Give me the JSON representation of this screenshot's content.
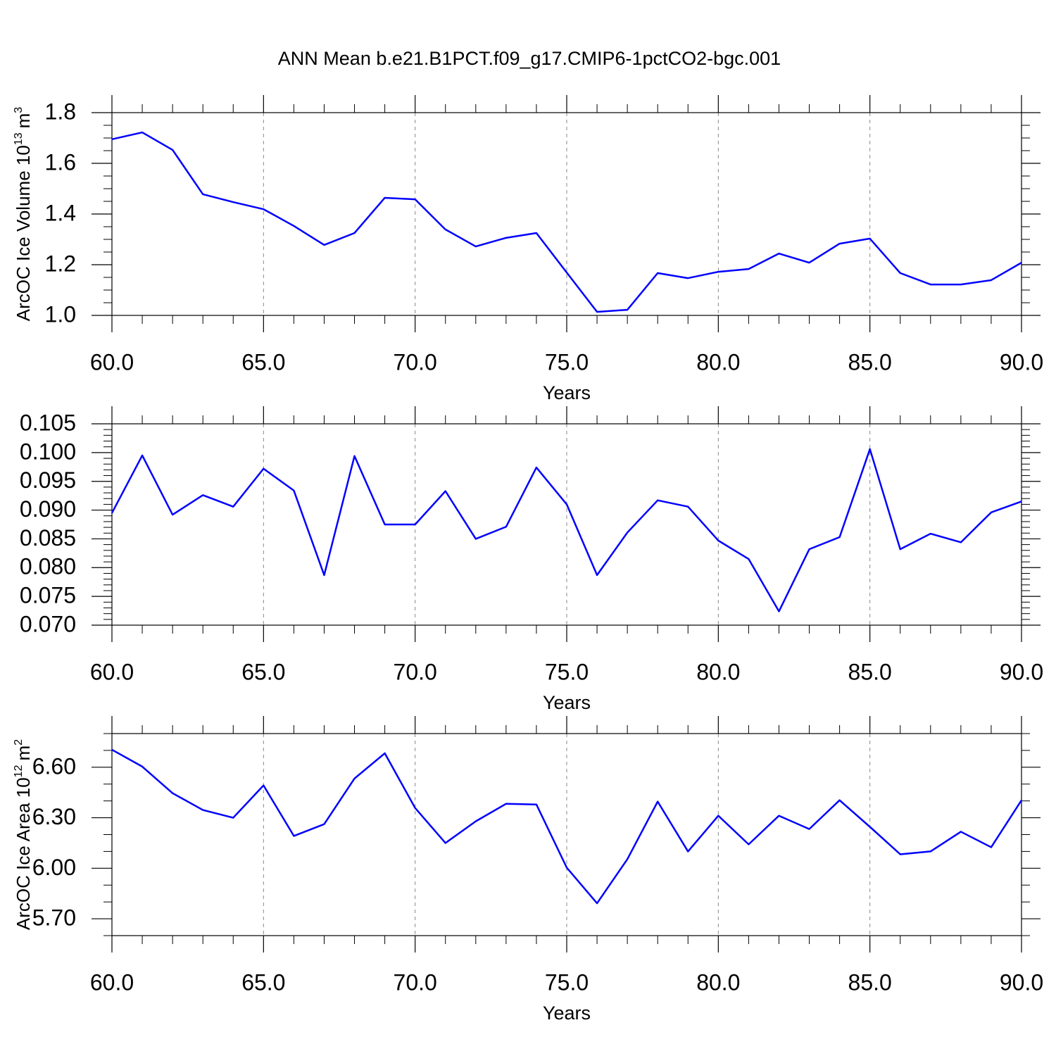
{
  "title": "ANN Mean b.e21.B1PCT.f09_g17.CMIP6-1pctCO2-bgc.001",
  "chart_data": [
    {
      "type": "line",
      "xlabel": "Years",
      "ylabel": {
        "text": "ArcOC Ice Volume 10",
        "exp": "13",
        "unit": "m",
        "unit_exp": "3"
      },
      "x": [
        60,
        61,
        62,
        63,
        64,
        65,
        66,
        67,
        68,
        69,
        70,
        71,
        72,
        73,
        74,
        75,
        76,
        77,
        78,
        79,
        80,
        81,
        82,
        83,
        84,
        85,
        86,
        87,
        88,
        89,
        90
      ],
      "series": [
        {
          "color": "#0000ff",
          "values": [
            1.695,
            1.722,
            1.653,
            1.478,
            1.447,
            1.419,
            1.353,
            1.278,
            1.325,
            1.464,
            1.458,
            1.339,
            1.272,
            1.306,
            1.325,
            1.169,
            1.014,
            1.022,
            1.167,
            1.147,
            1.172,
            1.183,
            1.244,
            1.208,
            1.283,
            1.303,
            1.167,
            1.122,
            1.122,
            1.139,
            1.208
          ]
        }
      ],
      "xlim": [
        60,
        90
      ],
      "xticks": [
        {
          "value": 60,
          "label": "60.0"
        },
        {
          "value": 65,
          "label": "65.0"
        },
        {
          "value": 70,
          "label": "70.0"
        },
        {
          "value": 75,
          "label": "75.0"
        },
        {
          "value": 80,
          "label": "80.0"
        },
        {
          "value": 85,
          "label": "85.0"
        },
        {
          "value": 90,
          "label": "90.0"
        }
      ],
      "xminor_per_major": 5,
      "ylim": [
        1.0,
        1.8
      ],
      "yticks": [
        {
          "value": 1.0,
          "label": "1.0"
        },
        {
          "value": 1.2,
          "label": "1.2"
        },
        {
          "value": 1.4,
          "label": "1.4"
        },
        {
          "value": 1.6,
          "label": "1.6"
        },
        {
          "value": 1.8,
          "label": "1.8"
        }
      ],
      "yminor_per_major": 4,
      "xgrid": true
    },
    {
      "type": "line",
      "xlabel": "Years",
      "x": [
        60,
        61,
        62,
        63,
        64,
        65,
        66,
        67,
        68,
        69,
        70,
        71,
        72,
        73,
        74,
        75,
        76,
        77,
        78,
        79,
        80,
        81,
        82,
        83,
        84,
        85,
        86,
        87,
        88,
        89,
        90
      ],
      "series": [
        {
          "color": "#0000ff",
          "values": [
            0.0895,
            0.0995,
            0.0892,
            0.0926,
            0.0906,
            0.0972,
            0.0934,
            0.0787,
            0.0994,
            0.0875,
            0.0875,
            0.0933,
            0.085,
            0.0871,
            0.0974,
            0.091,
            0.0787,
            0.0861,
            0.0917,
            0.0906,
            0.0847,
            0.0815,
            0.0724,
            0.0832,
            0.0853,
            0.1006,
            0.0832,
            0.0859,
            0.0844,
            0.0896,
            0.0915
          ]
        }
      ],
      "xlim": [
        60,
        90
      ],
      "xticks": [
        {
          "value": 60,
          "label": "60.0"
        },
        {
          "value": 65,
          "label": "65.0"
        },
        {
          "value": 70,
          "label": "70.0"
        },
        {
          "value": 75,
          "label": "75.0"
        },
        {
          "value": 80,
          "label": "80.0"
        },
        {
          "value": 85,
          "label": "85.0"
        },
        {
          "value": 90,
          "label": "90.0"
        }
      ],
      "xminor_per_major": 5,
      "ylim": [
        0.07,
        0.105
      ],
      "yticks": [
        {
          "value": 0.07,
          "label": "0.070"
        },
        {
          "value": 0.075,
          "label": "0.075"
        },
        {
          "value": 0.08,
          "label": "0.080"
        },
        {
          "value": 0.085,
          "label": "0.085"
        },
        {
          "value": 0.09,
          "label": "0.090"
        },
        {
          "value": 0.095,
          "label": "0.095"
        },
        {
          "value": 0.1,
          "label": "0.100"
        },
        {
          "value": 0.105,
          "label": "0.105"
        }
      ],
      "yminor_per_major": 5,
      "xgrid": true
    },
    {
      "type": "line",
      "xlabel": "Years",
      "ylabel": {
        "text": "ArcOC Ice Area 10",
        "exp": "12",
        "unit": "m",
        "unit_exp": "2"
      },
      "x": [
        60,
        61,
        62,
        63,
        64,
        65,
        66,
        67,
        68,
        69,
        70,
        71,
        72,
        73,
        74,
        75,
        76,
        77,
        78,
        79,
        80,
        81,
        82,
        83,
        84,
        85,
        86,
        87,
        88,
        89,
        90
      ],
      "series": [
        {
          "color": "#0000ff",
          "values": [
            6.704,
            6.604,
            6.446,
            6.346,
            6.3,
            6.492,
            6.192,
            6.262,
            6.533,
            6.683,
            6.358,
            6.15,
            6.279,
            6.383,
            6.379,
            6.004,
            5.792,
            6.054,
            6.396,
            6.1,
            6.312,
            6.142,
            6.312,
            6.233,
            6.404,
            6.246,
            6.083,
            6.1,
            6.217,
            6.125,
            6.404
          ]
        }
      ],
      "xlim": [
        60,
        90
      ],
      "xticks": [
        {
          "value": 60,
          "label": "60.0"
        },
        {
          "value": 65,
          "label": "65.0"
        },
        {
          "value": 70,
          "label": "70.0"
        },
        {
          "value": 75,
          "label": "75.0"
        },
        {
          "value": 80,
          "label": "80.0"
        },
        {
          "value": 85,
          "label": "85.0"
        },
        {
          "value": 90,
          "label": "90.0"
        }
      ],
      "xminor_per_major": 5,
      "ylim": [
        5.6,
        6.8
      ],
      "yticks": [
        {
          "value": 5.7,
          "label": "5.70"
        },
        {
          "value": 6.0,
          "label": "6.00"
        },
        {
          "value": 6.3,
          "label": "6.30"
        },
        {
          "value": 6.6,
          "label": "6.60"
        }
      ],
      "yminor_per_major": 3,
      "xgrid": true
    }
  ]
}
